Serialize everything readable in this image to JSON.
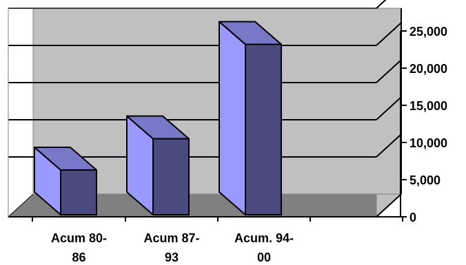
{
  "chart_data": {
    "type": "bar",
    "title": "",
    "xlabel": "",
    "ylabel": "",
    "categories": [
      [
        "Acum 80-",
        "86"
      ],
      [
        "Acum 87-",
        "93"
      ],
      [
        "Acum. 94-",
        "00"
      ],
      [
        "",
        ""
      ]
    ],
    "values": [
      6300,
      10500,
      23200,
      null
    ],
    "ylim": [
      0,
      25000
    ],
    "yticks": [
      0,
      5000,
      10000,
      15000,
      20000,
      25000
    ],
    "ytick_labels": [
      "0",
      "5,000",
      "10,000",
      "15,000",
      "20,000",
      "25,000"
    ],
    "grid": true,
    "legend": "none",
    "colors": {
      "bar_front": "#4a4a7e",
      "bar_side": "#9999ff",
      "bar_top": "#7878c8",
      "wall": "#c0c0c0",
      "floor": "#808080",
      "gridline": "#000000"
    }
  }
}
